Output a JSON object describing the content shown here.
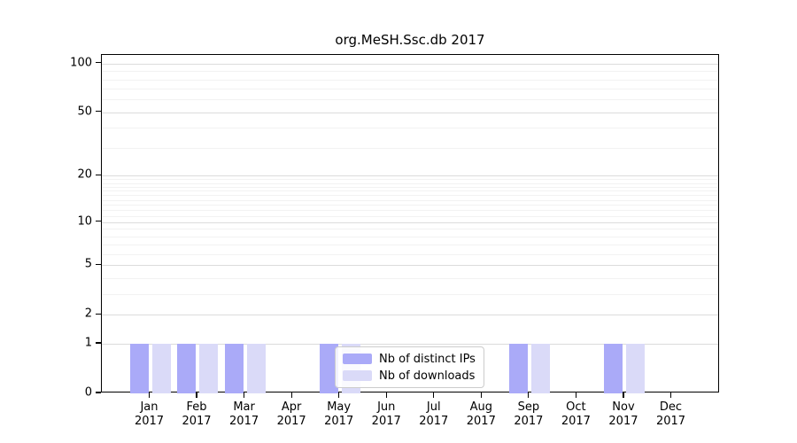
{
  "figure": {
    "background": "#ffffff"
  },
  "chart_data": {
    "type": "bar",
    "title": "org.MeSH.Ssc.db 2017",
    "categories": [
      "Jan",
      "Feb",
      "Mar",
      "Apr",
      "May",
      "Jun",
      "Jul",
      "Aug",
      "Sep",
      "Oct",
      "Nov",
      "Dec"
    ],
    "category_year": "2017",
    "series": [
      {
        "name": "Nb of distinct IPs",
        "color": "#aaaaf8",
        "values": [
          1,
          1,
          1,
          0,
          1,
          0,
          0,
          0,
          1,
          0,
          1,
          0
        ]
      },
      {
        "name": "Nb of downloads",
        "color": "#dadaf8",
        "values": [
          1,
          1,
          1,
          0,
          1,
          0,
          0,
          0,
          1,
          0,
          1,
          0
        ]
      }
    ],
    "xlabel": "",
    "ylabel": "",
    "yscale": "log1p",
    "ylim": [
      0,
      113
    ],
    "yticks": [
      0,
      1,
      2,
      5,
      10,
      20,
      50,
      100
    ],
    "yticks_minor": [
      3,
      4,
      6,
      7,
      8,
      9,
      11,
      12,
      13,
      14,
      15,
      16,
      17,
      18,
      19,
      30,
      40,
      60,
      70,
      80,
      90
    ],
    "grid": true,
    "legend": {
      "position": "lower center",
      "entries": [
        "Nb of distinct IPs",
        "Nb of downloads"
      ]
    },
    "colors": {
      "major_grid": "#dcdcdc",
      "minor_grid": "#f2f2f2",
      "axis": "#000000",
      "text": "#000000"
    }
  }
}
